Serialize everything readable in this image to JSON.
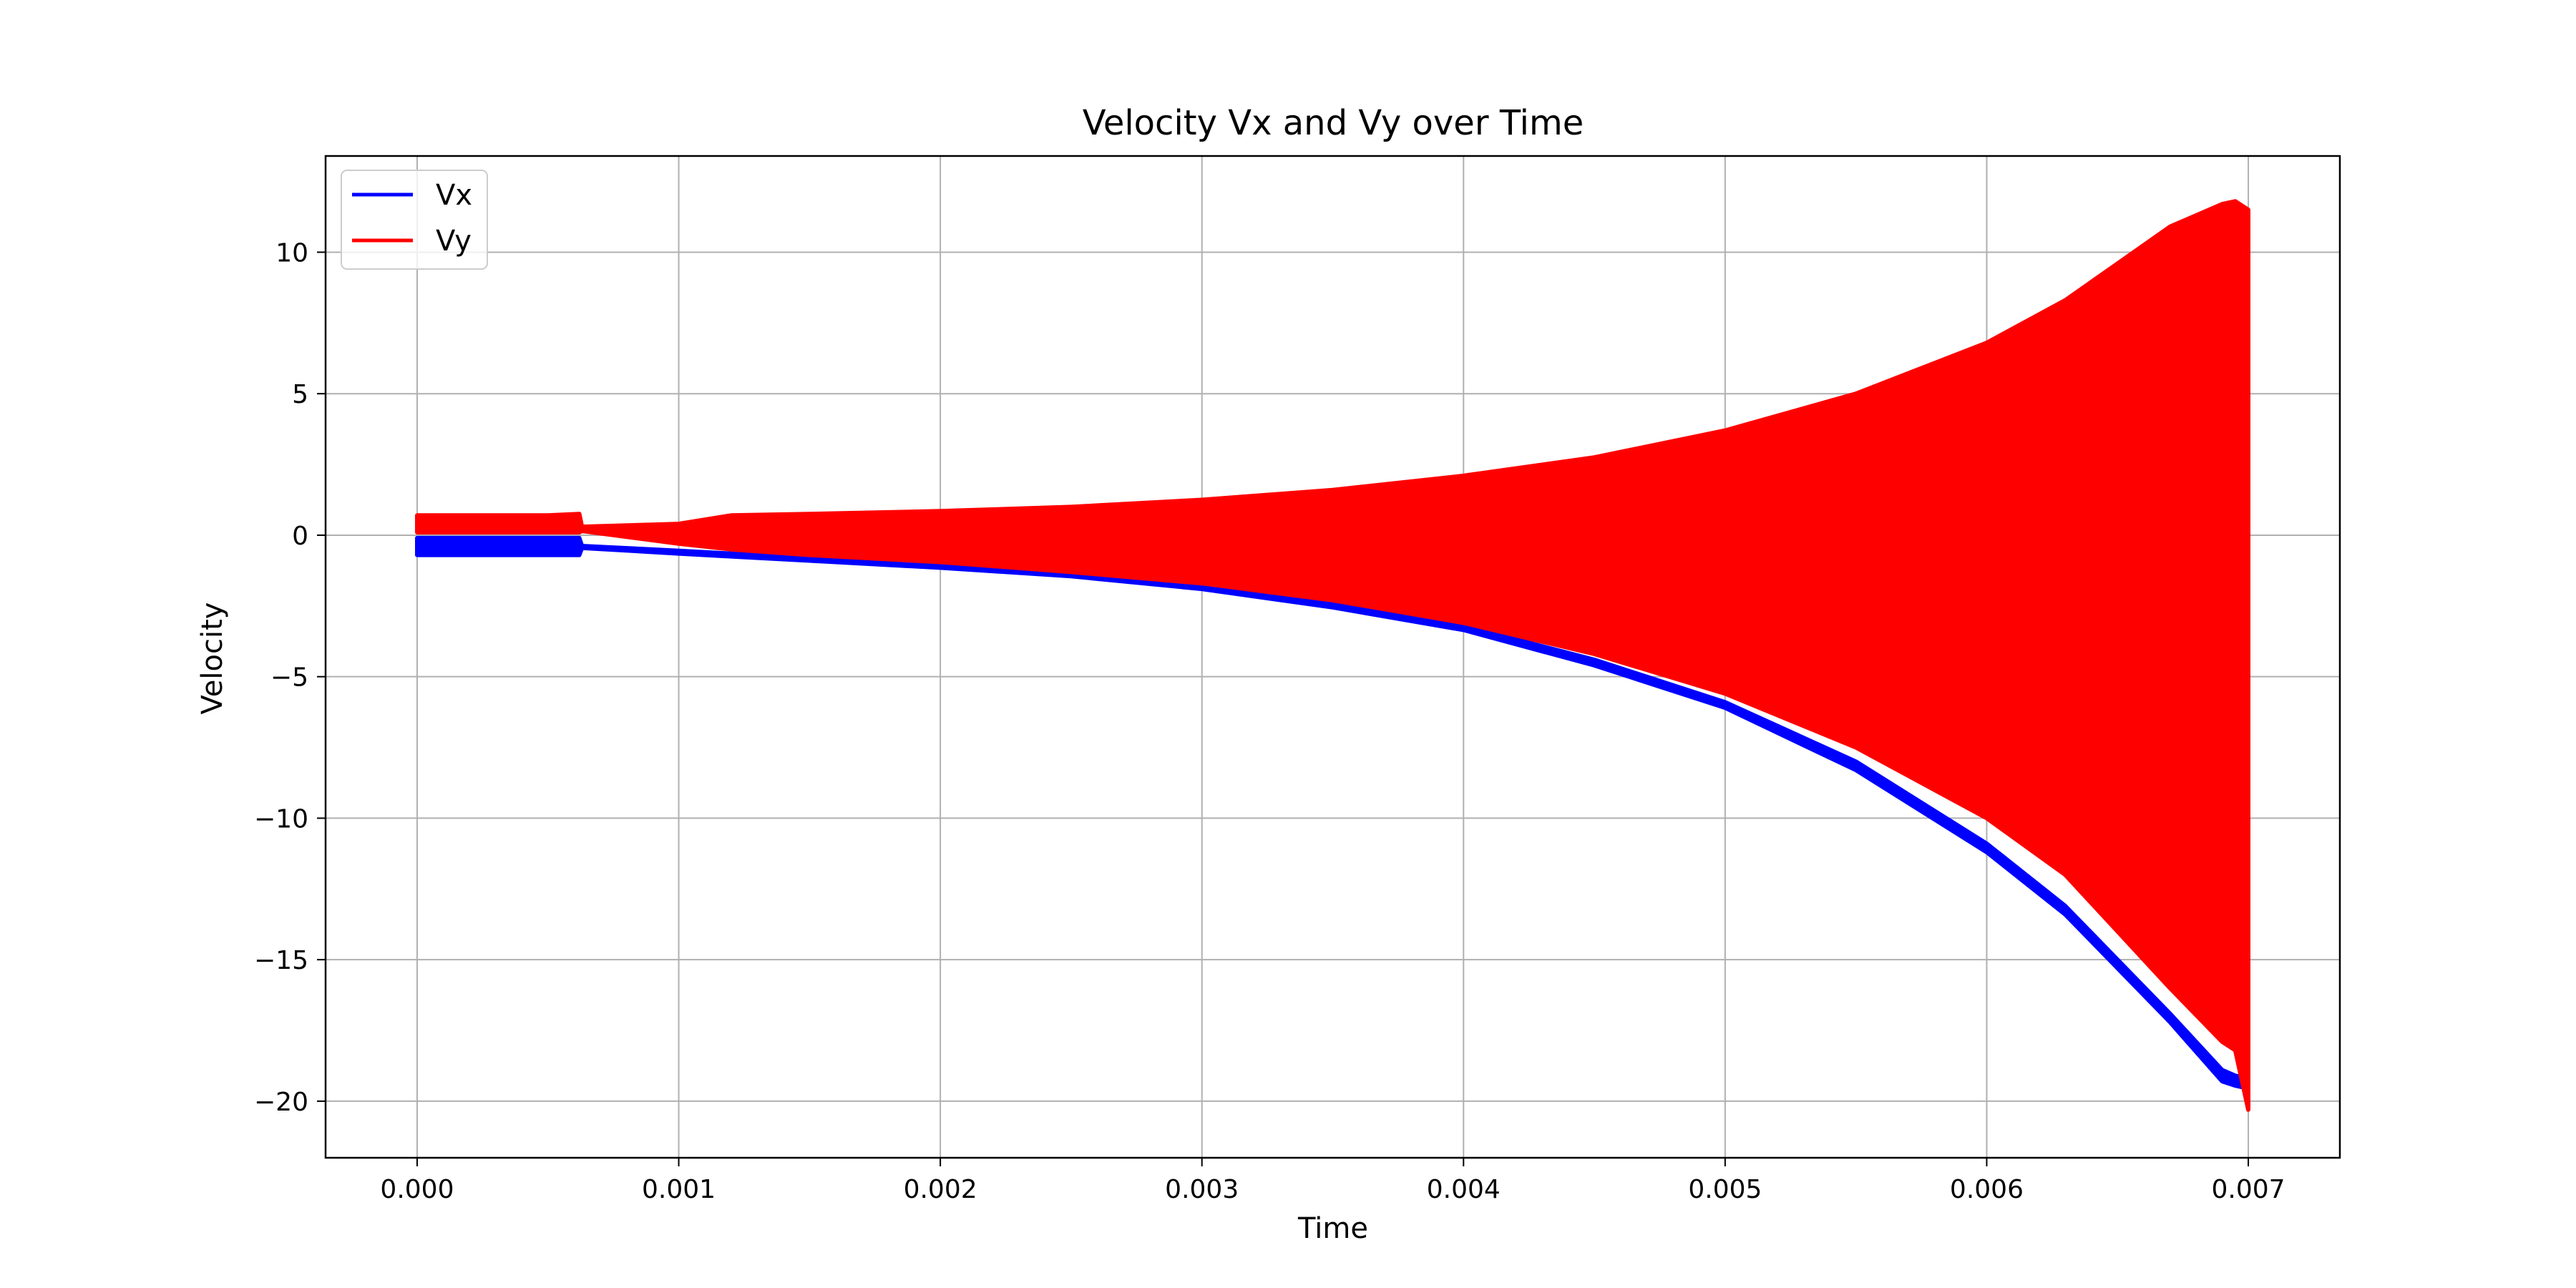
{
  "chart_data": {
    "type": "line",
    "title": "Velocity Vx and Vy over Time",
    "xlabel": "Time",
    "ylabel": "Velocity",
    "xlim": [
      -0.00035,
      0.00735
    ],
    "ylim": [
      -22,
      13.4
    ],
    "xticks": [
      0.0,
      0.001,
      0.002,
      0.003,
      0.004,
      0.005,
      0.006,
      0.007
    ],
    "xtick_labels": [
      "0.000",
      "0.001",
      "0.002",
      "0.003",
      "0.004",
      "0.005",
      "0.006",
      "0.007"
    ],
    "yticks": [
      -20,
      -15,
      -10,
      -5,
      0,
      5,
      10
    ],
    "ytick_labels": [
      "−20",
      "−15",
      "−10",
      "−5",
      "0",
      "5",
      "10"
    ],
    "grid": true,
    "legend_position": "upper-left",
    "series": [
      {
        "name": "Vx",
        "color": "#0000ff",
        "kind": "envelope",
        "x": [
          0.0,
          0.0001,
          0.0002,
          0.0003,
          0.0004,
          0.0005,
          0.00062,
          0.00063,
          0.001,
          0.0012,
          0.0015,
          0.002,
          0.0025,
          0.003,
          0.0035,
          0.004,
          0.0045,
          0.005,
          0.0055,
          0.006,
          0.0063,
          0.0065,
          0.0067,
          0.0069,
          0.00695,
          0.007
        ],
        "upper": [
          -0.1,
          -0.1,
          -0.1,
          -0.1,
          -0.1,
          -0.1,
          -0.1,
          -0.38,
          -0.55,
          -0.65,
          -0.8,
          -1.05,
          -1.35,
          -1.75,
          -2.4,
          -3.2,
          -4.4,
          -5.9,
          -8.0,
          -10.9,
          -13.1,
          -15.0,
          -16.9,
          -18.9,
          -19.1,
          -19.2
        ],
        "lower": [
          -0.7,
          -0.7,
          -0.7,
          -0.7,
          -0.7,
          -0.7,
          -0.7,
          -0.45,
          -0.65,
          -0.75,
          -0.9,
          -1.15,
          -1.45,
          -1.9,
          -2.55,
          -3.35,
          -4.6,
          -6.1,
          -8.3,
          -11.2,
          -13.4,
          -15.3,
          -17.2,
          -19.3,
          -19.45,
          -19.55
        ]
      },
      {
        "name": "Vy",
        "color": "#ff0000",
        "kind": "envelope",
        "x": [
          0.0,
          0.0001,
          0.0002,
          0.0003,
          0.0004,
          0.0005,
          0.00062,
          0.00063,
          0.001,
          0.0012,
          0.0015,
          0.002,
          0.0025,
          0.003,
          0.0035,
          0.004,
          0.0045,
          0.005,
          0.0055,
          0.006,
          0.0063,
          0.0065,
          0.0067,
          0.0069,
          0.00695,
          0.007
        ],
        "upper": [
          0.7,
          0.7,
          0.7,
          0.7,
          0.7,
          0.7,
          0.75,
          0.3,
          0.4,
          0.7,
          0.75,
          0.85,
          1.0,
          1.25,
          1.6,
          2.1,
          2.75,
          3.7,
          5.0,
          6.8,
          8.3,
          9.6,
          10.9,
          11.7,
          11.8,
          11.5
        ],
        "lower": [
          0.1,
          0.1,
          0.1,
          0.1,
          0.1,
          0.1,
          0.1,
          0.15,
          -0.3,
          -0.5,
          -0.7,
          -0.95,
          -1.3,
          -1.7,
          -2.3,
          -3.1,
          -4.2,
          -5.6,
          -7.5,
          -10.0,
          -12.0,
          -14.0,
          -16.0,
          -17.9,
          -18.2,
          -20.3
        ]
      }
    ]
  }
}
